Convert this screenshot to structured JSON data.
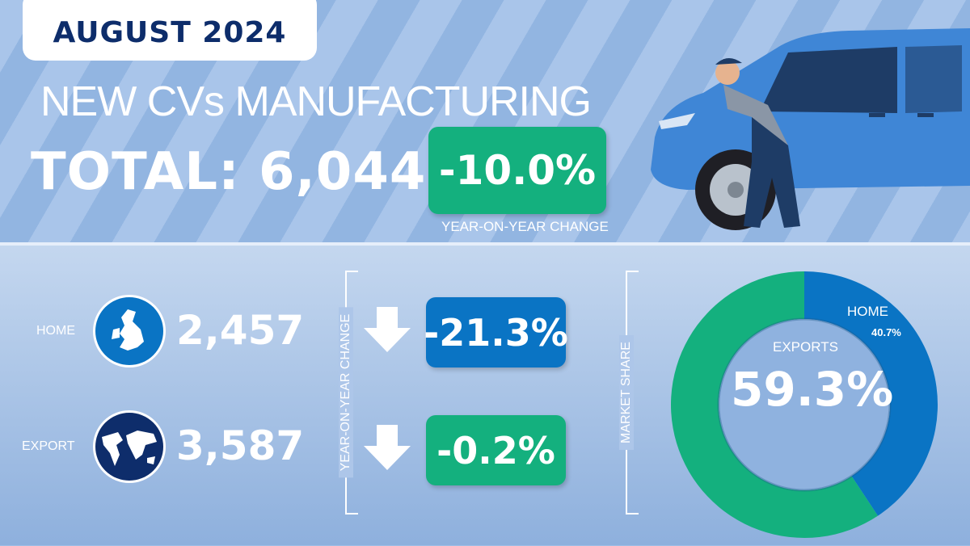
{
  "header": {
    "date": "AUGUST 2024",
    "title": "NEW CVs MANUFACTURING",
    "total": "TOTAL: 6,044",
    "total_change": "-10.0%",
    "total_change_label": "YEAR-ON-YEAR CHANGE"
  },
  "rows": [
    {
      "label": "HOME",
      "value": "2,457",
      "change": "-21.3%",
      "direction": "down",
      "icon": "uk-map-icon",
      "color": "#0a74c4"
    },
    {
      "label": "EXPORT",
      "value": "3,587",
      "change": "-0.2%",
      "direction": "down",
      "icon": "world-map-icon",
      "color": "#14b07e"
    }
  ],
  "yoy_label": "YEAR-ON-YEAR CHANGE",
  "market_share_label": "MARKET SHARE",
  "colors": {
    "green": "#14b07e",
    "blue": "#0a74c4",
    "navy": "#0d2d6b"
  },
  "chart_data": {
    "type": "pie",
    "variant": "donut",
    "series": [
      {
        "name": "HOME",
        "value": 40.7,
        "label": "40.7%",
        "color": "#0a74c4"
      },
      {
        "name": "EXPORTS",
        "value": 59.3,
        "label": "59.3%",
        "color": "#14b07e"
      }
    ]
  }
}
